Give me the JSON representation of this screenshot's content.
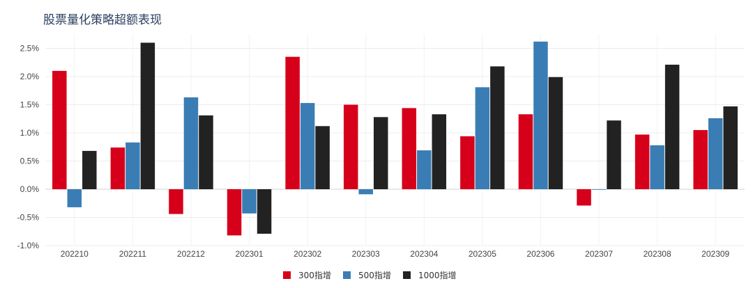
{
  "chart_data": {
    "type": "bar",
    "title": "股票量化策略超额表现",
    "xlabel": "",
    "ylabel": "",
    "ylim": [
      -1.0,
      2.75
    ],
    "yticks": [
      -1.0,
      -0.5,
      0.0,
      0.5,
      1.0,
      1.5,
      2.0,
      2.5
    ],
    "ytick_labels": [
      "-1.0%",
      "-0.5%",
      "0.0%",
      "0.5%",
      "1.0%",
      "1.5%",
      "2.0%",
      "2.5%"
    ],
    "categories": [
      "202210",
      "202211",
      "202212",
      "202301",
      "202302",
      "202303",
      "202304",
      "202305",
      "202306",
      "202307",
      "202308",
      "202309"
    ],
    "series": [
      {
        "name": "300指增",
        "color": "#d7001a",
        "values": [
          2.1,
          0.74,
          -0.44,
          -0.82,
          2.35,
          1.5,
          1.44,
          0.94,
          1.33,
          -0.29,
          0.97,
          1.05
        ]
      },
      {
        "name": "500指增",
        "color": "#3a7db4",
        "values": [
          -0.32,
          0.83,
          1.63,
          -0.43,
          1.53,
          -0.09,
          0.69,
          1.81,
          2.62,
          -0.01,
          0.78,
          1.26
        ]
      },
      {
        "name": "1000指增",
        "color": "#222222",
        "values": [
          0.68,
          2.6,
          1.31,
          -0.79,
          1.12,
          1.28,
          1.33,
          2.18,
          1.99,
          1.22,
          2.21,
          1.47
        ]
      }
    ],
    "legend_position": "bottom-center",
    "grid": true
  }
}
